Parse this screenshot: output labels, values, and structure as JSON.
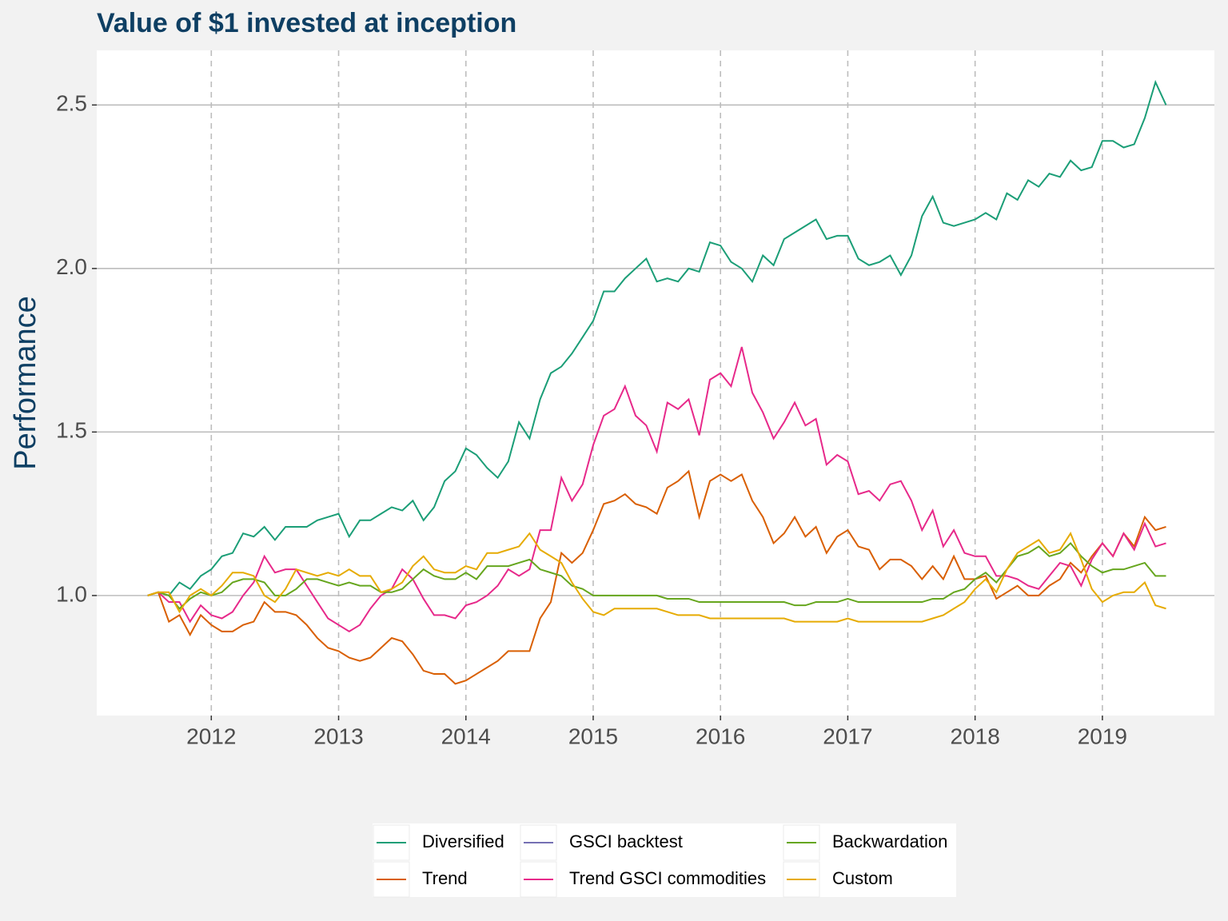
{
  "chart_data": {
    "type": "line",
    "title": "Value of $1 invested at inception",
    "y_label": "Performance",
    "x": [
      2011.5,
      2011.583,
      2011.667,
      2011.75,
      2011.833,
      2011.917,
      2012,
      2012.083,
      2012.167,
      2012.25,
      2012.333,
      2012.417,
      2012.5,
      2012.583,
      2012.667,
      2012.75,
      2012.833,
      2012.917,
      2013,
      2013.083,
      2013.167,
      2013.25,
      2013.333,
      2013.417,
      2013.5,
      2013.583,
      2013.667,
      2013.75,
      2013.833,
      2013.917,
      2014,
      2014.083,
      2014.167,
      2014.25,
      2014.333,
      2014.417,
      2014.5,
      2014.583,
      2014.667,
      2014.75,
      2014.833,
      2014.917,
      2015,
      2015.083,
      2015.167,
      2015.25,
      2015.333,
      2015.417,
      2015.5,
      2015.583,
      2015.667,
      2015.75,
      2015.833,
      2015.917,
      2016,
      2016.083,
      2016.167,
      2016.25,
      2016.333,
      2016.417,
      2016.5,
      2016.583,
      2016.667,
      2016.75,
      2016.833,
      2016.917,
      2017,
      2017.083,
      2017.167,
      2017.25,
      2017.333,
      2017.417,
      2017.5,
      2017.583,
      2017.667,
      2017.75,
      2017.833,
      2017.917,
      2018,
      2018.083,
      2018.167,
      2018.25,
      2018.333,
      2018.417,
      2018.5,
      2018.583,
      2018.667,
      2018.75,
      2018.833,
      2018.917,
      2019,
      2019.083,
      2019.167,
      2019.25,
      2019.333,
      2019.417,
      2019.5
    ],
    "series": [
      {
        "name": "Diversified",
        "color": "#1b9e77",
        "values": [
          1.0,
          1.01,
          1.0,
          1.04,
          1.02,
          1.06,
          1.08,
          1.12,
          1.13,
          1.19,
          1.18,
          1.21,
          1.17,
          1.21,
          1.21,
          1.21,
          1.23,
          1.24,
          1.25,
          1.18,
          1.23,
          1.23,
          1.25,
          1.27,
          1.26,
          1.29,
          1.23,
          1.27,
          1.35,
          1.38,
          1.45,
          1.43,
          1.39,
          1.36,
          1.41,
          1.53,
          1.48,
          1.6,
          1.68,
          1.7,
          1.74,
          1.79,
          1.84,
          1.93,
          1.93,
          1.97,
          2.0,
          2.03,
          1.96,
          1.97,
          1.96,
          2.0,
          1.99,
          2.08,
          2.07,
          2.02,
          2.0,
          1.96,
          2.04,
          2.01,
          2.09,
          2.11,
          2.13,
          2.15,
          2.09,
          2.1,
          2.1,
          2.03,
          2.01,
          2.02,
          2.04,
          1.98,
          2.04,
          2.16,
          2.22,
          2.14,
          2.13,
          2.14,
          2.15,
          2.17,
          2.15,
          2.23,
          2.21,
          2.27,
          2.25,
          2.29,
          2.28,
          2.33,
          2.3,
          2.31,
          2.39,
          2.39,
          2.37,
          2.38,
          2.46,
          2.57,
          2.5
        ]
      },
      {
        "name": "Trend",
        "color": "#d95f02",
        "values": [
          1.0,
          1.01,
          0.92,
          0.94,
          0.88,
          0.94,
          0.91,
          0.89,
          0.89,
          0.91,
          0.92,
          0.98,
          0.95,
          0.95,
          0.94,
          0.91,
          0.87,
          0.84,
          0.83,
          0.81,
          0.8,
          0.81,
          0.84,
          0.87,
          0.86,
          0.82,
          0.77,
          0.76,
          0.76,
          0.73,
          0.74,
          0.76,
          0.78,
          0.8,
          0.83,
          0.83,
          0.83,
          0.93,
          0.98,
          1.13,
          1.1,
          1.13,
          1.2,
          1.28,
          1.29,
          1.31,
          1.28,
          1.27,
          1.25,
          1.33,
          1.35,
          1.38,
          1.24,
          1.35,
          1.37,
          1.35,
          1.37,
          1.29,
          1.24,
          1.16,
          1.19,
          1.24,
          1.18,
          1.21,
          1.13,
          1.18,
          1.2,
          1.15,
          1.14,
          1.08,
          1.11,
          1.11,
          1.09,
          1.05,
          1.09,
          1.05,
          1.12,
          1.05,
          1.05,
          1.06,
          0.99,
          1.01,
          1.03,
          1.0,
          1.0,
          1.03,
          1.05,
          1.1,
          1.07,
          1.12,
          1.16,
          1.12,
          1.19,
          1.15,
          1.24,
          1.2,
          1.21
        ]
      },
      {
        "name": "GSCI backtest",
        "color": "#7570b3",
        "values": [
          null,
          null,
          null,
          null,
          null,
          null,
          null,
          null,
          null,
          null,
          null,
          null,
          null,
          null,
          null,
          null,
          null,
          null,
          null,
          null,
          null,
          null,
          null,
          null,
          null,
          null,
          null,
          null,
          null,
          null,
          null,
          null,
          null,
          null,
          null,
          null,
          null,
          null,
          null,
          null,
          null,
          null,
          null,
          null,
          null,
          null,
          null,
          null,
          null,
          null,
          null,
          null,
          null,
          null,
          null,
          null,
          null,
          null,
          null,
          null,
          null,
          null,
          null,
          null,
          null,
          null,
          null,
          null,
          null,
          null,
          null,
          null,
          null,
          null,
          null,
          null,
          null,
          null,
          null,
          null,
          null,
          null,
          null,
          null,
          null,
          null,
          null,
          null,
          null,
          null,
          null,
          null,
          null,
          null,
          null,
          null,
          null
        ]
      },
      {
        "name": "Trend GSCI commodities",
        "color": "#e7298a",
        "values": [
          1.0,
          1.01,
          0.98,
          0.98,
          0.92,
          0.97,
          0.94,
          0.93,
          0.95,
          1.0,
          1.04,
          1.12,
          1.07,
          1.08,
          1.08,
          1.03,
          0.98,
          0.93,
          0.91,
          0.89,
          0.91,
          0.96,
          1.0,
          1.02,
          1.08,
          1.05,
          0.99,
          0.94,
          0.94,
          0.93,
          0.97,
          0.98,
          1.0,
          1.03,
          1.08,
          1.06,
          1.08,
          1.2,
          1.2,
          1.36,
          1.29,
          1.34,
          1.46,
          1.55,
          1.57,
          1.64,
          1.55,
          1.52,
          1.44,
          1.59,
          1.57,
          1.6,
          1.49,
          1.66,
          1.68,
          1.64,
          1.76,
          1.62,
          1.56,
          1.48,
          1.53,
          1.59,
          1.52,
          1.54,
          1.4,
          1.43,
          1.41,
          1.31,
          1.32,
          1.29,
          1.34,
          1.35,
          1.29,
          1.2,
          1.26,
          1.15,
          1.2,
          1.13,
          1.12,
          1.12,
          1.06,
          1.06,
          1.05,
          1.03,
          1.02,
          1.06,
          1.1,
          1.09,
          1.03,
          1.11,
          1.16,
          1.12,
          1.19,
          1.14,
          1.22,
          1.15,
          1.16
        ]
      },
      {
        "name": "Backwardation",
        "color": "#66a61e",
        "values": [
          1.0,
          1.01,
          1.0,
          0.96,
          0.99,
          1.01,
          1.0,
          1.01,
          1.04,
          1.05,
          1.05,
          1.04,
          1.0,
          1.0,
          1.02,
          1.05,
          1.05,
          1.04,
          1.03,
          1.04,
          1.03,
          1.03,
          1.01,
          1.01,
          1.02,
          1.05,
          1.08,
          1.06,
          1.05,
          1.05,
          1.07,
          1.05,
          1.09,
          1.09,
          1.09,
          1.1,
          1.11,
          1.08,
          1.07,
          1.06,
          1.03,
          1.02,
          1.0,
          1.0,
          1.0,
          1.0,
          1.0,
          1.0,
          1.0,
          0.99,
          0.99,
          0.99,
          0.98,
          0.98,
          0.98,
          0.98,
          0.98,
          0.98,
          0.98,
          0.98,
          0.98,
          0.97,
          0.97,
          0.98,
          0.98,
          0.98,
          0.99,
          0.98,
          0.98,
          0.98,
          0.98,
          0.98,
          0.98,
          0.98,
          0.99,
          0.99,
          1.01,
          1.02,
          1.05,
          1.07,
          1.04,
          1.08,
          1.12,
          1.13,
          1.15,
          1.12,
          1.13,
          1.16,
          1.12,
          1.09,
          1.07,
          1.08,
          1.08,
          1.09,
          1.1,
          1.06,
          1.06
        ]
      },
      {
        "name": "Custom",
        "color": "#e6ab02",
        "values": [
          1.0,
          1.01,
          1.01,
          0.95,
          1.0,
          1.02,
          1.0,
          1.03,
          1.07,
          1.07,
          1.06,
          1.0,
          0.98,
          1.02,
          1.08,
          1.07,
          1.06,
          1.07,
          1.06,
          1.08,
          1.06,
          1.06,
          1.01,
          1.02,
          1.04,
          1.09,
          1.12,
          1.08,
          1.07,
          1.07,
          1.09,
          1.08,
          1.13,
          1.13,
          1.14,
          1.15,
          1.19,
          1.14,
          1.12,
          1.1,
          1.04,
          0.99,
          0.95,
          0.94,
          0.96,
          0.96,
          0.96,
          0.96,
          0.96,
          0.95,
          0.94,
          0.94,
          0.94,
          0.93,
          0.93,
          0.93,
          0.93,
          0.93,
          0.93,
          0.93,
          0.93,
          0.92,
          0.92,
          0.92,
          0.92,
          0.92,
          0.93,
          0.92,
          0.92,
          0.92,
          0.92,
          0.92,
          0.92,
          0.92,
          0.93,
          0.94,
          0.96,
          0.98,
          1.02,
          1.05,
          1.01,
          1.08,
          1.13,
          1.15,
          1.17,
          1.13,
          1.14,
          1.19,
          1.11,
          1.02,
          0.98,
          1.0,
          1.01,
          1.01,
          1.04,
          0.97,
          0.96
        ]
      }
    ],
    "xlim": [
      2011.1,
      2019.88
    ],
    "xticks": [
      2012,
      2013,
      2014,
      2015,
      2016,
      2017,
      2018,
      2019
    ],
    "ylim": [
      0.633,
      2.667
    ],
    "yticks": [
      {
        "value": 1,
        "label": "1.0"
      },
      1.5,
      {
        "value": 2,
        "label": "2.0"
      },
      2.5
    ],
    "grid": true,
    "legend": "bottom"
  }
}
